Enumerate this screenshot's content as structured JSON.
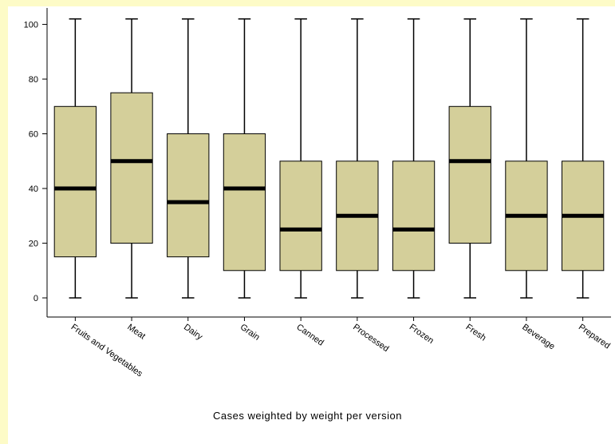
{
  "chart_data": {
    "type": "box",
    "categories": [
      "Fruits and Vegetables",
      "Meat",
      "Dairy",
      "Grain",
      "Canned",
      "Processed",
      "Frozen",
      "Fresh",
      "Beverage",
      "Prepared"
    ],
    "boxes": [
      {
        "min": 0,
        "q1": 15,
        "median": 40,
        "q3": 70,
        "max": 102
      },
      {
        "min": 0,
        "q1": 20,
        "median": 50,
        "q3": 75,
        "max": 102
      },
      {
        "min": 0,
        "q1": 15,
        "median": 35,
        "q3": 60,
        "max": 102
      },
      {
        "min": 0,
        "q1": 10,
        "median": 40,
        "q3": 60,
        "max": 102
      },
      {
        "min": 0,
        "q1": 10,
        "median": 25,
        "q3": 50,
        "max": 102
      },
      {
        "min": 0,
        "q1": 10,
        "median": 30,
        "q3": 50,
        "max": 102
      },
      {
        "min": 0,
        "q1": 10,
        "median": 25,
        "q3": 50,
        "max": 102
      },
      {
        "min": 0,
        "q1": 20,
        "median": 50,
        "q3": 70,
        "max": 102
      },
      {
        "min": 0,
        "q1": 10,
        "median": 30,
        "q3": 50,
        "max": 102
      },
      {
        "min": 0,
        "q1": 10,
        "median": 30,
        "q3": 50,
        "max": 102
      }
    ],
    "y_ticks": [
      "0",
      "20",
      "40",
      "60",
      "80",
      "100"
    ],
    "ylim": [
      -7,
      106
    ],
    "box_color": "#d4cf9a",
    "caption": "Cases weighted by weight per version"
  }
}
